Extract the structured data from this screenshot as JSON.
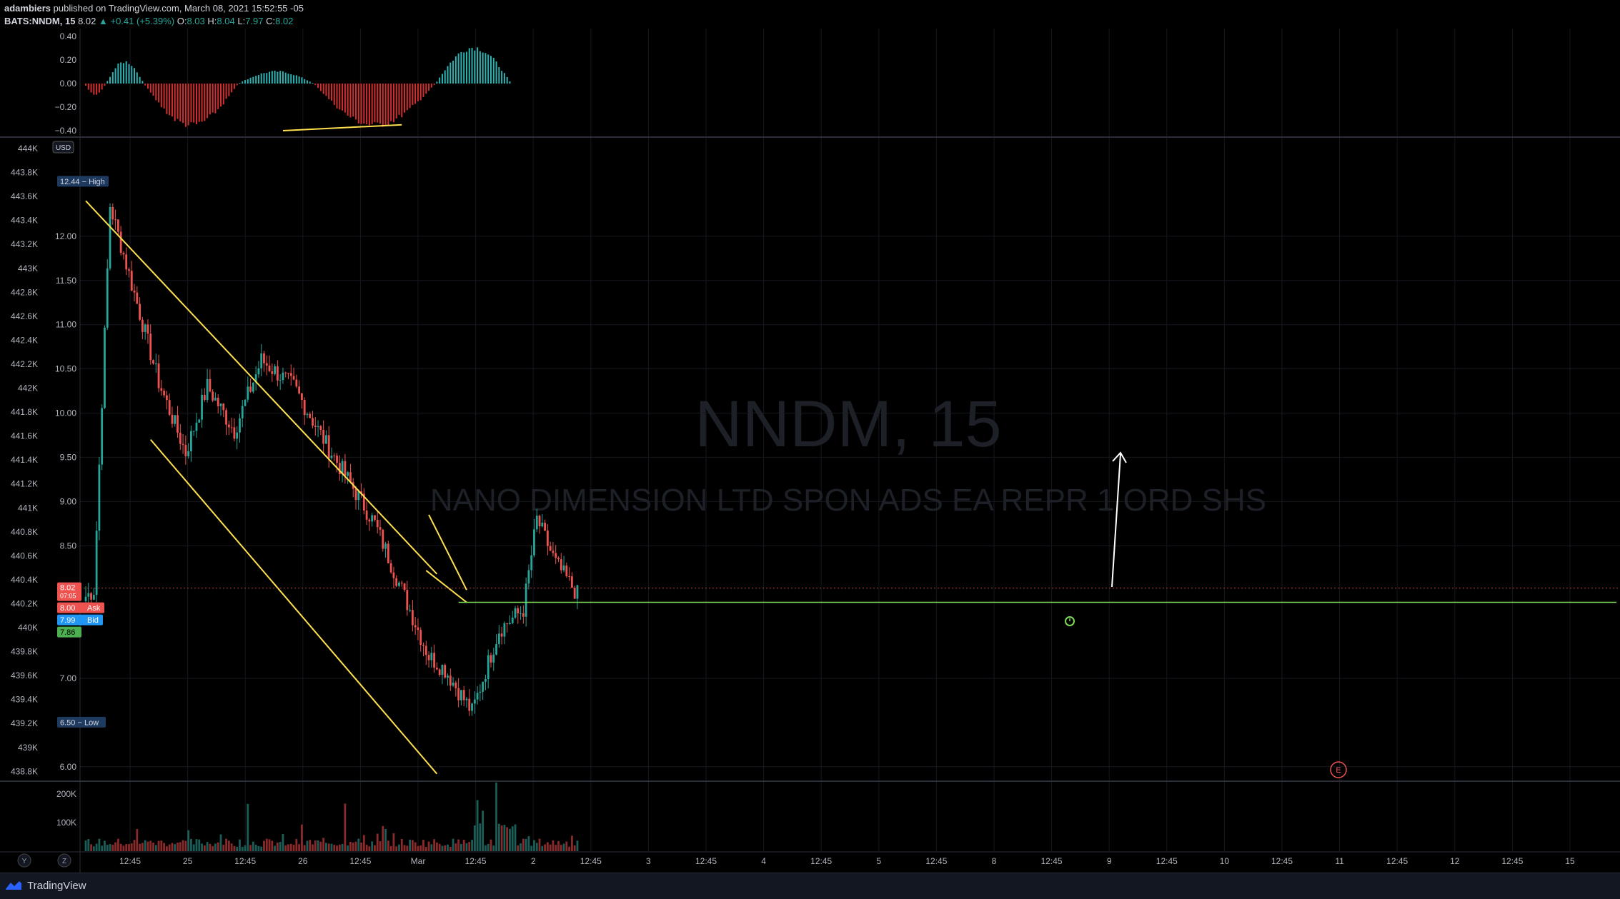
{
  "header": {
    "author": "adambiers",
    "published": "published on TradingView.com, March 08, 2021 15:52:55 -05",
    "symbol": "BATS:NNDM, 15",
    "last": "8.02",
    "change": "▲ +0.41 (+5.39%)",
    "ohlc": [
      {
        "k": "O:",
        "v": "8.03"
      },
      {
        "k": "H:",
        "v": "8.04"
      },
      {
        "k": "L:",
        "v": "7.97"
      },
      {
        "k": "C:",
        "v": "8.02"
      }
    ]
  },
  "watermark": {
    "symbol": "NNDM, 15",
    "name": "NANO DIMENSION LTD SPON ADS EA REPR 1 ORD SHS"
  },
  "colors": {
    "bull": "#26a69a",
    "bear": "#ef5350",
    "osc_bull": "#2db3b3",
    "osc_bear": "#d32f2f",
    "trendline": "#ffe14d",
    "support": "#7ed957",
    "arrow": "#ffffff"
  },
  "chart_data": {
    "type": "candlestick",
    "symbol": "BATS:NNDM",
    "timeframe": "15",
    "currency": "USD",
    "price_axis": {
      "ticks": [
        "12.00",
        "11.50",
        "11.00",
        "10.50",
        "10.00",
        "9.50",
        "9.00",
        "8.50",
        "7.00",
        "6.00"
      ],
      "ylim": [
        5.95,
        12.75
      ]
    },
    "secondary_axis_ticks": [
      "444K",
      "443.8K",
      "443.6K",
      "443.4K",
      "443.2K",
      "443K",
      "442.8K",
      "442.6K",
      "442.4K",
      "442.2K",
      "442K",
      "441.8K",
      "441.6K",
      "441.4K",
      "441.2K",
      "441K",
      "440.8K",
      "440.6K",
      "440.4K",
      "440.2K",
      "440K",
      "439.8K",
      "439.6K",
      "439.4K",
      "439.2K",
      "439K",
      "438.8K"
    ],
    "price_labels": {
      "high": {
        "value": 12.44,
        "label": "12.44 − High"
      },
      "low": {
        "value": 6.5,
        "label": "6.50 − Low"
      },
      "last": {
        "value": 8.02,
        "label": "8.02",
        "countdown": "07:05"
      },
      "ask": {
        "value": 8.0,
        "label": "8.00",
        "tag": "Ask"
      },
      "bid": {
        "value": 7.99,
        "label": "7.99",
        "tag": "Bid"
      },
      "prev": {
        "value": 7.86,
        "label": "7.86"
      }
    },
    "time_axis": [
      "12:45",
      "25",
      "12:45",
      "26",
      "12:45",
      "Mar",
      "12:45",
      "2",
      "12:45",
      "3",
      "12:45",
      "4",
      "12:45",
      "5",
      "12:45",
      "8",
      "12:45",
      "9",
      "12:45",
      "10",
      "12:45",
      "11",
      "12:45",
      "12",
      "12:45",
      "15"
    ],
    "oscillator": {
      "ticks": [
        "0.40",
        "0.20",
        "0.00",
        "−0.20",
        "−0.40"
      ],
      "ylim": [
        -0.43,
        0.43
      ],
      "waves": [
        {
          "from": 0,
          "to": 8,
          "peak": -0.1
        },
        {
          "from": 8,
          "to": 22,
          "peak": 0.2
        },
        {
          "from": 22,
          "to": 57,
          "peak": -0.38
        },
        {
          "from": 57,
          "to": 85,
          "peak": 0.11
        },
        {
          "from": 85,
          "to": 130,
          "peak": -0.38
        },
        {
          "from": 130,
          "to": 158,
          "peak": 0.33
        }
      ]
    },
    "volume": {
      "ticks": [
        "200K",
        "100K"
      ],
      "ylim": [
        0,
        230000
      ]
    },
    "segments": [
      {
        "len": 4,
        "start": 7.9,
        "end": 8.0
      },
      {
        "len": 6,
        "start": 7.95,
        "end": 12.35
      },
      {
        "len": 18,
        "start": 12.35,
        "end": 10.35
      },
      {
        "len": 10,
        "start": 10.35,
        "end": 9.55
      },
      {
        "len": 8,
        "start": 9.55,
        "end": 10.3
      },
      {
        "len": 10,
        "start": 10.3,
        "end": 9.8
      },
      {
        "len": 10,
        "start": 9.8,
        "end": 10.6
      },
      {
        "len": 12,
        "start": 10.6,
        "end": 10.3
      },
      {
        "len": 12,
        "start": 10.3,
        "end": 9.65
      },
      {
        "len": 8,
        "start": 9.65,
        "end": 9.25
      },
      {
        "len": 10,
        "start": 9.25,
        "end": 8.75
      },
      {
        "len": 10,
        "start": 8.75,
        "end": 8.0
      },
      {
        "len": 10,
        "start": 8.0,
        "end": 7.25
      },
      {
        "len": 6,
        "start": 7.25,
        "end": 7.1
      },
      {
        "len": 10,
        "start": 7.1,
        "end": 6.62
      },
      {
        "len": 10,
        "start": 6.62,
        "end": 7.55
      },
      {
        "len": 9,
        "start": 7.55,
        "end": 7.78
      },
      {
        "len": 5,
        "start": 7.78,
        "end": 8.8
      },
      {
        "len": 7,
        "start": 8.8,
        "end": 8.3
      },
      {
        "len": 8,
        "start": 8.3,
        "end": 7.95
      }
    ],
    "trendlines": [
      {
        "name": "channel-top",
        "from": [
          0,
          12.4
        ],
        "to": [
          130,
          8.18
        ]
      },
      {
        "name": "channel-bottom",
        "from": [
          24,
          9.7
        ],
        "to": [
          130,
          5.92
        ]
      },
      {
        "name": "wedge-top",
        "from": [
          127,
          8.85
        ],
        "to": [
          141,
          8.0
        ]
      },
      {
        "name": "wedge-bottom",
        "from": [
          126,
          8.22
        ],
        "to": [
          141,
          7.86
        ]
      },
      {
        "name": "support",
        "from": [
          138,
          7.86
        ],
        "to": [
          200,
          7.86
        ]
      },
      {
        "name": "osc-divergence",
        "from": [
          73,
          -0.4
        ],
        "to": [
          117,
          -0.35
        ]
      }
    ],
    "grid": true,
    "earnings_marker": "E"
  },
  "axis_buttons": {
    "y": "Y",
    "z": "Z"
  },
  "footer": {
    "brand": "TradingView"
  }
}
